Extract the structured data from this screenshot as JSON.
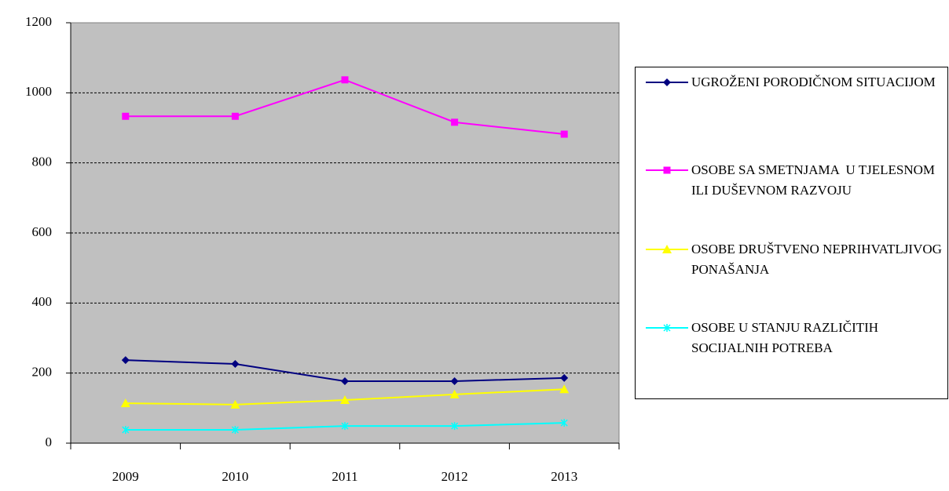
{
  "chart_data": {
    "type": "line",
    "categories": [
      "2009",
      "2010",
      "2011",
      "2012",
      "2013"
    ],
    "series": [
      {
        "name": "UGROŽENI PORODIČNOM SITUACIJOM",
        "color": "#000080",
        "marker": "diamond",
        "values": [
          237,
          226,
          177,
          177,
          186
        ]
      },
      {
        "name": "OSOBE SA SMETNJAMA  U TJELESNOM ILI DUŠEVNOM RAZVOJU",
        "color": "#ff00ff",
        "marker": "square",
        "values": [
          933,
          933,
          1037,
          916,
          882
        ]
      },
      {
        "name": "OSOBE DRUŠTVENO NEPRIHVATLJIVOG PONAŠANJA",
        "color": "#ffff00",
        "marker": "triangle",
        "values": [
          114,
          110,
          123,
          139,
          154
        ]
      },
      {
        "name": "OSOBE U STANJU RAZLIČITIH SOCIJALNIH POTREBA",
        "color": "#00ffff",
        "marker": "x",
        "values": [
          38,
          38,
          49,
          49,
          58
        ]
      }
    ],
    "ylim": [
      0,
      1200
    ],
    "yticks": [
      0,
      200,
      400,
      600,
      800,
      1000,
      1200
    ],
    "grid": true,
    "legend": "right"
  }
}
